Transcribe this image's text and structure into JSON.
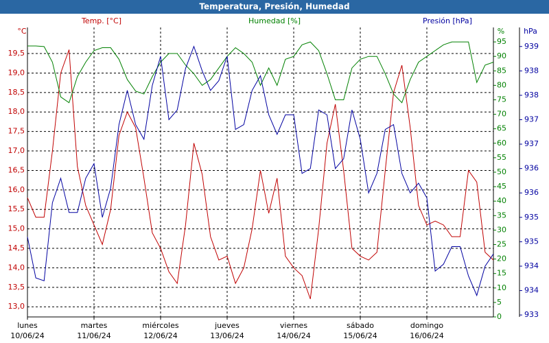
{
  "chart_data": {
    "type": "line",
    "title": "Temperatura, Presión, Humedad",
    "y_unit": "°C",
    "y2_unit": "%",
    "y3_unit": "hPa",
    "grid": true,
    "x": [
      0,
      0.125,
      0.25,
      0.375,
      0.5,
      0.625,
      0.75,
      0.875,
      1,
      1.125,
      1.25,
      1.375,
      1.5,
      1.625,
      1.75,
      1.875,
      2,
      2.125,
      2.25,
      2.375,
      2.5,
      2.625,
      2.75,
      2.875,
      3,
      3.125,
      3.25,
      3.375,
      3.5,
      3.625,
      3.75,
      3.875,
      4,
      4.125,
      4.25,
      4.375,
      4.5,
      4.625,
      4.75,
      4.875,
      5,
      5.125,
      5.25,
      5.375,
      5.5,
      5.625,
      5.75,
      5.875,
      6,
      6.125,
      6.25,
      6.375,
      6.5,
      6.625,
      6.75,
      6.875,
      7
    ],
    "xlim": [
      0,
      7
    ],
    "xticks": [
      {
        "value": 0,
        "label": "lunes",
        "date": "10/06/24"
      },
      {
        "value": 1,
        "label": "martes",
        "date": "11/06/24"
      },
      {
        "value": 2,
        "label": "miércoles",
        "date": "12/06/24"
      },
      {
        "value": 3,
        "label": "jueves",
        "date": "13/06/24"
      },
      {
        "value": 4,
        "label": "viernes",
        "date": "14/06/24"
      },
      {
        "value": 5,
        "label": "sábado",
        "date": "15/06/24"
      },
      {
        "value": 6,
        "label": "domingo",
        "date": "16/06/24"
      }
    ],
    "ylim": [
      12.74,
      20.17
    ],
    "yticks": [
      {
        "value": 13,
        "label": "13,0"
      },
      {
        "value": 13.5,
        "label": "13,5"
      },
      {
        "value": 14,
        "label": "14,0"
      },
      {
        "value": 14.5,
        "label": "14,5"
      },
      {
        "value": 15,
        "label": "15,0"
      },
      {
        "value": 15.5,
        "label": "15,5"
      },
      {
        "value": 16,
        "label": "16,0"
      },
      {
        "value": 16.5,
        "label": "16,5"
      },
      {
        "value": 17,
        "label": "17,0"
      },
      {
        "value": 17.5,
        "label": "17,5"
      },
      {
        "value": 18,
        "label": "18,0"
      },
      {
        "value": 18.5,
        "label": "18,5"
      },
      {
        "value": 19,
        "label": "19,0"
      },
      {
        "value": 19.5,
        "label": "19,5"
      }
    ],
    "y2lim": [
      0,
      100
    ],
    "y2ticks": [
      0,
      5,
      10,
      15,
      20,
      25,
      30,
      35,
      40,
      45,
      50,
      55,
      60,
      65,
      70,
      75,
      80,
      85,
      90,
      95
    ],
    "y3lim": [
      932.96,
      938.89
    ],
    "y3ticks": [
      {
        "value": 933,
        "label": "933"
      },
      {
        "value": 933.5,
        "label": "934"
      },
      {
        "value": 934,
        "label": "934"
      },
      {
        "value": 934.5,
        "label": "935"
      },
      {
        "value": 935,
        "label": "935"
      },
      {
        "value": 935.5,
        "label": "936"
      },
      {
        "value": 936,
        "label": "936"
      },
      {
        "value": 936.5,
        "label": "937"
      },
      {
        "value": 937,
        "label": "937"
      },
      {
        "value": 937.5,
        "label": "938"
      },
      {
        "value": 938,
        "label": "938"
      },
      {
        "value": 938.5,
        "label": "939"
      }
    ],
    "series": [
      {
        "name": "Temp. [°C]",
        "color": "#c00000",
        "axis": "y",
        "values": [
          15.8,
          15.3,
          15.3,
          17.0,
          19.0,
          19.6,
          16.6,
          15.6,
          15.1,
          14.6,
          15.5,
          17.4,
          18.0,
          17.6,
          16.3,
          14.9,
          14.5,
          13.9,
          13.6,
          15.1,
          17.2,
          16.4,
          14.8,
          14.2,
          14.3,
          13.6,
          14.0,
          15.0,
          16.5,
          15.4,
          16.3,
          14.3,
          14.0,
          13.8,
          13.2,
          15.0,
          17.2,
          18.2,
          16.5,
          14.5,
          14.3,
          14.2,
          14.4,
          16.5,
          18.5,
          19.2,
          17.6,
          15.6,
          15.1,
          15.2,
          15.1,
          14.8,
          14.8,
          16.5,
          16.2,
          14.4,
          14.2
        ]
      },
      {
        "name": "Humedad [%]",
        "color": "#008000",
        "axis": "y2",
        "values": [
          93.6,
          93.6,
          93.4,
          88,
          76,
          74,
          83,
          88,
          92,
          93,
          93,
          89,
          82,
          78,
          77,
          83,
          88,
          91,
          91,
          87,
          84,
          80,
          82,
          86,
          90,
          93,
          91,
          88,
          80,
          86,
          80,
          89,
          90,
          94,
          95,
          92,
          84,
          75,
          75,
          86,
          89,
          90,
          90,
          84,
          77,
          74,
          82,
          88,
          90,
          92,
          94,
          95,
          95,
          95,
          81,
          87,
          88
        ]
      },
      {
        "name": "Presión [hPa]",
        "color": "#0000a0",
        "axis": "y3",
        "values": [
          934.6,
          933.76,
          933.7,
          935.3,
          935.8,
          935.1,
          935.1,
          935.8,
          936.1,
          935.0,
          935.6,
          936.9,
          937.6,
          936.9,
          936.6,
          937.7,
          938.3,
          937.0,
          937.2,
          938.05,
          938.5,
          938.0,
          937.6,
          937.8,
          938.3,
          936.8,
          936.9,
          937.6,
          937.9,
          937.1,
          936.7,
          937.1,
          937.1,
          935.9,
          936.0,
          937.2,
          937.1,
          936.0,
          936.2,
          937.2,
          936.6,
          935.5,
          935.9,
          936.8,
          936.9,
          935.9,
          935.5,
          935.7,
          935.4,
          933.9,
          934.04,
          934.4,
          934.4,
          933.8,
          933.4,
          934.0,
          934.25
        ]
      }
    ]
  }
}
